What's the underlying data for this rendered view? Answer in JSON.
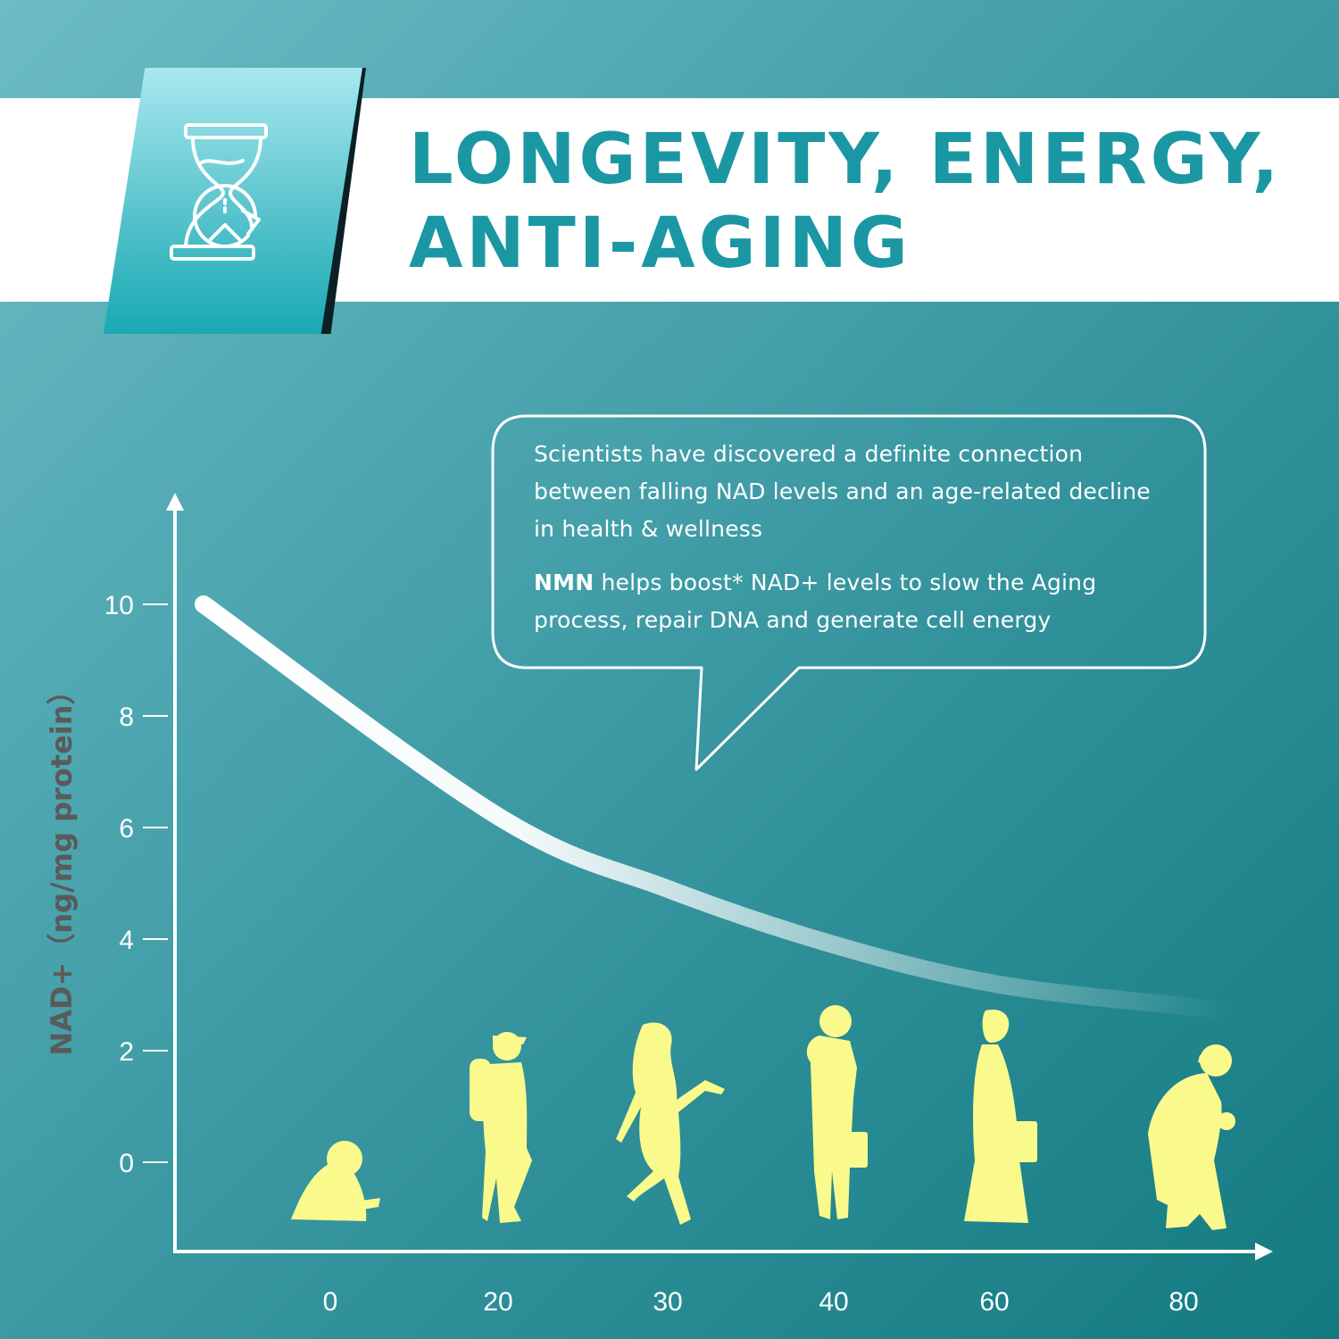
{
  "header": {
    "title_line1": "LONGEVITY, ENERGY,",
    "title_line2": "ANTI-AGING",
    "badge_icon": "hourglass-reverse-icon"
  },
  "callout": {
    "paragraph1": "Scientists have discovered a definite connection between falling NAD levels and an age-related decline in health & wellness",
    "paragraph2_bold": "NMN",
    "paragraph2_rest": " helps boost* NAD+ levels to slow the Aging process, repair DNA and generate cell energy"
  },
  "colors": {
    "title": "#1a97a3",
    "silhouette": "#fafa8c",
    "axis": "#ffffff",
    "ylabel": "#5a5a5a"
  },
  "chart_data": {
    "type": "line",
    "ylabel": "NAD+（ng/mg protein）",
    "xlabel": "",
    "yticks": [
      "0",
      "2",
      "4",
      "6",
      "8",
      "10"
    ],
    "x": [
      "0",
      "20",
      "30",
      "40",
      "60",
      "80"
    ],
    "ylim": [
      0,
      10
    ],
    "series": [
      {
        "values": [
          10,
          6.2,
          4.9,
          3.9,
          3.2,
          2.8
        ]
      }
    ]
  }
}
